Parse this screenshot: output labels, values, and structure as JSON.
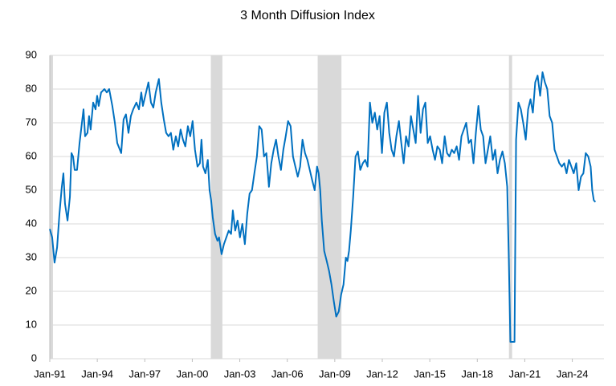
{
  "chart_data": {
    "type": "line",
    "title": "3 Month Diffusion Index",
    "x": [
      1991.0,
      1991.15,
      1991.3,
      1991.46,
      1991.61,
      1991.76,
      1991.86,
      1991.96,
      1992.12,
      1992.27,
      1992.37,
      1992.47,
      1992.57,
      1992.72,
      1992.88,
      1993.03,
      1993.13,
      1993.23,
      1993.38,
      1993.48,
      1993.58,
      1993.74,
      1993.89,
      1993.99,
      1994.09,
      1994.24,
      1994.45,
      1994.6,
      1994.75,
      1994.95,
      1995.11,
      1995.26,
      1995.51,
      1995.66,
      1995.81,
      1995.97,
      1996.12,
      1996.27,
      1996.47,
      1996.63,
      1996.78,
      1996.88,
      1997.08,
      1997.23,
      1997.39,
      1997.54,
      1997.69,
      1997.89,
      1998.04,
      1998.2,
      1998.35,
      1998.5,
      1998.65,
      1998.8,
      1998.96,
      1999.11,
      1999.26,
      1999.41,
      1999.56,
      1999.72,
      1999.87,
      2000.02,
      2000.17,
      2000.33,
      2000.48,
      2000.58,
      2000.68,
      2000.83,
      2000.98,
      2001.09,
      2001.19,
      2001.29,
      2001.44,
      2001.59,
      2001.69,
      2001.85,
      2002.0,
      2002.15,
      2002.3,
      2002.45,
      2002.56,
      2002.71,
      2002.86,
      2003.01,
      2003.16,
      2003.32,
      2003.47,
      2003.62,
      2003.77,
      2003.92,
      2004.08,
      2004.23,
      2004.38,
      2004.53,
      2004.68,
      2004.84,
      2004.99,
      2005.14,
      2005.29,
      2005.44,
      2005.6,
      2005.75,
      2005.9,
      2006.05,
      2006.21,
      2006.36,
      2006.51,
      2006.66,
      2006.81,
      2006.96,
      2007.12,
      2007.27,
      2007.42,
      2007.57,
      2007.73,
      2007.88,
      2007.98,
      2008.08,
      2008.18,
      2008.33,
      2008.49,
      2008.64,
      2008.79,
      2008.94,
      2009.09,
      2009.25,
      2009.4,
      2009.55,
      2009.7,
      2009.8,
      2009.9,
      2010.01,
      2010.16,
      2010.31,
      2010.46,
      2010.61,
      2010.77,
      2010.92,
      2011.07,
      2011.22,
      2011.37,
      2011.53,
      2011.68,
      2011.83,
      2011.98,
      2012.13,
      2012.29,
      2012.44,
      2012.59,
      2012.74,
      2012.89,
      2013.05,
      2013.2,
      2013.35,
      2013.5,
      2013.66,
      2013.81,
      2013.96,
      2014.11,
      2014.26,
      2014.42,
      2014.57,
      2014.72,
      2014.87,
      2015.02,
      2015.18,
      2015.33,
      2015.48,
      2015.63,
      2015.78,
      2015.94,
      2016.09,
      2016.24,
      2016.39,
      2016.54,
      2016.7,
      2016.85,
      2017.0,
      2017.15,
      2017.3,
      2017.46,
      2017.61,
      2017.76,
      2017.91,
      2018.07,
      2018.22,
      2018.37,
      2018.52,
      2018.67,
      2018.82,
      2018.98,
      2019.13,
      2019.28,
      2019.43,
      2019.59,
      2019.74,
      2019.89,
      2019.99,
      2020.09,
      2020.35,
      2020.45,
      2020.6,
      2020.75,
      2020.9,
      2021.06,
      2021.21,
      2021.36,
      2021.51,
      2021.66,
      2021.81,
      2021.97,
      2022.12,
      2022.27,
      2022.42,
      2022.57,
      2022.73,
      2022.88,
      2023.03,
      2023.18,
      2023.34,
      2023.49,
      2023.64,
      2023.79,
      2023.94,
      2024.09,
      2024.25,
      2024.4,
      2024.55,
      2024.7,
      2024.85,
      2025.01,
      2025.16,
      2025.26,
      2025.36,
      2025.46
    ],
    "series": [
      {
        "name": "3 Month Diffusion Index",
        "color": "#0070c0",
        "values": [
          38.5,
          36,
          28.5,
          33,
          43,
          51,
          55,
          46,
          41,
          48,
          61,
          60,
          56,
          56,
          64,
          70,
          74,
          66,
          67,
          72,
          68,
          76,
          74,
          78,
          75,
          79,
          80,
          79,
          80,
          75,
          70,
          64,
          61,
          71,
          72.5,
          67,
          72,
          74,
          76,
          74,
          79,
          75,
          79,
          82,
          76,
          74.5,
          79,
          83,
          76,
          71,
          67,
          66,
          67,
          62,
          66,
          63,
          68,
          65,
          63,
          69,
          66,
          70.5,
          62,
          57,
          58,
          65,
          57,
          55,
          59,
          50,
          47,
          42,
          37,
          35,
          36,
          31,
          34,
          36,
          38,
          37,
          44,
          38,
          41,
          36,
          40,
          34,
          43,
          49,
          50,
          55,
          60,
          69,
          68,
          60,
          61,
          51,
          58,
          62,
          65,
          60,
          56,
          62,
          66,
          70.5,
          69,
          60,
          57,
          54,
          57,
          65,
          61,
          59,
          56,
          53,
          50,
          57,
          55,
          50,
          41,
          32,
          29,
          26,
          22,
          17,
          12.5,
          14,
          19,
          22,
          30,
          29,
          32,
          38,
          48,
          60,
          61.5,
          56,
          58,
          59,
          57,
          76,
          70,
          73,
          68,
          72,
          61,
          73,
          76,
          67,
          62,
          60,
          66,
          70.5,
          64,
          58,
          66,
          63,
          72,
          68,
          64,
          78,
          67,
          74,
          76,
          64,
          66,
          62,
          59,
          63,
          62,
          58,
          66,
          61,
          60,
          62,
          61,
          63,
          59,
          66,
          68,
          70,
          64,
          65,
          58,
          67,
          75,
          68,
          66,
          58,
          62,
          66,
          59,
          62,
          55,
          59,
          61.5,
          58,
          51,
          30,
          5,
          5,
          65,
          76,
          74,
          70,
          65,
          74,
          77,
          73,
          82,
          84,
          78,
          85,
          82,
          80,
          72,
          70,
          62,
          60,
          58,
          57,
          58,
          55,
          59,
          57,
          55,
          58,
          50,
          54,
          55,
          61,
          60,
          57,
          50,
          47,
          46.5
        ]
      }
    ],
    "recessions": [
      [
        1991.0,
        1991.2
      ],
      [
        2001.17,
        2001.9
      ],
      [
        2007.92,
        2009.42
      ],
      [
        2020.0,
        2020.2
      ]
    ],
    "xlim": [
      1991,
      2026
    ],
    "xticks": [
      {
        "value": 1991,
        "label": "Jan-91"
      },
      {
        "value": 1994,
        "label": "Jan-94"
      },
      {
        "value": 1997,
        "label": "Jan-97"
      },
      {
        "value": 2000,
        "label": "Jan-00"
      },
      {
        "value": 2003,
        "label": "Jan-03"
      },
      {
        "value": 2006,
        "label": "Jan-06"
      },
      {
        "value": 2009,
        "label": "Jan-09"
      },
      {
        "value": 2012,
        "label": "Jan-12"
      },
      {
        "value": 2015,
        "label": "Jan-15"
      },
      {
        "value": 2018,
        "label": "Jan-18"
      },
      {
        "value": 2021,
        "label": "Jan-21"
      },
      {
        "value": 2024,
        "label": "Jan-24"
      }
    ],
    "ylim": [
      0,
      90
    ],
    "yticks": [
      0,
      10,
      20,
      30,
      40,
      50,
      60,
      70,
      80,
      90
    ],
    "grid": true
  }
}
